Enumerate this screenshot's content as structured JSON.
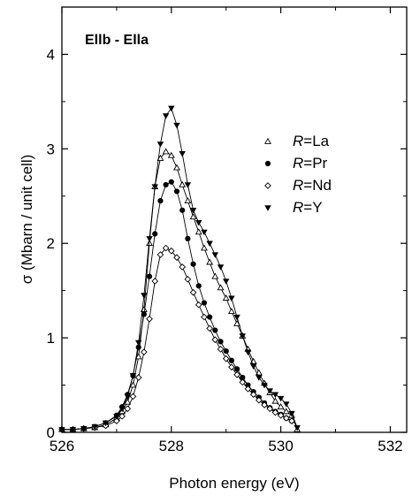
{
  "chart_data": {
    "type": "scatter",
    "title": "",
    "panel_label": "Ellb - Ella",
    "xlabel": "Photon energy (eV)",
    "ylabel": "σ (Mbarn / unit cell)",
    "xlim": [
      526,
      532.3
    ],
    "ylim": [
      0,
      4.5
    ],
    "x_ticks": [
      526,
      528,
      530,
      532
    ],
    "y_ticks": [
      0,
      1,
      2,
      3,
      4
    ],
    "grid": false,
    "legend_position": "upper-right",
    "series": [
      {
        "name": "R=La",
        "legend_prefix": "R",
        "legend_suffix": "=La",
        "marker": "triangle-up-open",
        "points": [
          [
            526.0,
            0.03
          ],
          [
            526.2,
            0.03
          ],
          [
            526.4,
            0.04
          ],
          [
            526.6,
            0.05
          ],
          [
            526.8,
            0.08
          ],
          [
            527.0,
            0.15
          ],
          [
            527.1,
            0.22
          ],
          [
            527.2,
            0.32
          ],
          [
            527.3,
            0.5
          ],
          [
            527.4,
            0.8
          ],
          [
            527.5,
            1.3
          ],
          [
            527.6,
            2.0
          ],
          [
            527.7,
            2.6
          ],
          [
            527.8,
            2.9
          ],
          [
            527.9,
            2.97
          ],
          [
            528.0,
            2.93
          ],
          [
            528.1,
            2.8
          ],
          [
            528.2,
            2.62
          ],
          [
            528.3,
            2.45
          ],
          [
            528.4,
            2.28
          ],
          [
            528.5,
            2.12
          ],
          [
            528.6,
            1.95
          ],
          [
            528.7,
            1.8
          ],
          [
            528.8,
            1.65
          ],
          [
            528.9,
            1.53
          ],
          [
            529.0,
            1.42
          ],
          [
            529.1,
            1.28
          ],
          [
            529.2,
            1.15
          ],
          [
            529.3,
            1.02
          ],
          [
            529.4,
            0.88
          ],
          [
            529.5,
            0.75
          ],
          [
            529.6,
            0.63
          ],
          [
            529.7,
            0.52
          ],
          [
            529.8,
            0.42
          ],
          [
            529.9,
            0.33
          ],
          [
            530.0,
            0.27
          ],
          [
            530.1,
            0.22
          ],
          [
            530.2,
            0.18
          ],
          [
            530.3,
            0.03
          ]
        ]
      },
      {
        "name": "R=Pr",
        "legend_prefix": "R",
        "legend_suffix": "=Pr",
        "marker": "circle-filled",
        "points": [
          [
            526.0,
            0.03
          ],
          [
            526.2,
            0.03
          ],
          [
            526.4,
            0.04
          ],
          [
            526.6,
            0.06
          ],
          [
            526.8,
            0.1
          ],
          [
            527.0,
            0.18
          ],
          [
            527.1,
            0.27
          ],
          [
            527.2,
            0.4
          ],
          [
            527.3,
            0.6
          ],
          [
            527.4,
            0.9
          ],
          [
            527.5,
            1.25
          ],
          [
            527.6,
            1.65
          ],
          [
            527.7,
            2.1
          ],
          [
            527.8,
            2.45
          ],
          [
            527.9,
            2.62
          ],
          [
            528.0,
            2.65
          ],
          [
            528.1,
            2.55
          ],
          [
            528.2,
            2.35
          ],
          [
            528.3,
            2.05
          ],
          [
            528.4,
            1.78
          ],
          [
            528.5,
            1.55
          ],
          [
            528.6,
            1.37
          ],
          [
            528.7,
            1.22
          ],
          [
            528.8,
            1.08
          ],
          [
            528.9,
            0.96
          ],
          [
            529.0,
            0.86
          ],
          [
            529.1,
            0.76
          ],
          [
            529.2,
            0.67
          ],
          [
            529.3,
            0.58
          ],
          [
            529.4,
            0.5
          ],
          [
            529.5,
            0.43
          ],
          [
            529.6,
            0.37
          ],
          [
            529.7,
            0.31
          ],
          [
            529.8,
            0.26
          ],
          [
            529.9,
            0.22
          ],
          [
            530.0,
            0.19
          ],
          [
            530.1,
            0.15
          ],
          [
            530.2,
            0.12
          ]
        ]
      },
      {
        "name": "R=Nd",
        "legend_prefix": "R",
        "legend_suffix": "=Nd",
        "marker": "diamond-open",
        "points": [
          [
            526.0,
            0.03
          ],
          [
            526.2,
            0.03
          ],
          [
            526.4,
            0.04
          ],
          [
            526.6,
            0.05
          ],
          [
            526.8,
            0.07
          ],
          [
            527.0,
            0.12
          ],
          [
            527.1,
            0.17
          ],
          [
            527.2,
            0.25
          ],
          [
            527.3,
            0.38
          ],
          [
            527.4,
            0.58
          ],
          [
            527.5,
            0.85
          ],
          [
            527.6,
            1.2
          ],
          [
            527.7,
            1.6
          ],
          [
            527.8,
            1.88
          ],
          [
            527.9,
            1.95
          ],
          [
            528.0,
            1.92
          ],
          [
            528.1,
            1.85
          ],
          [
            528.2,
            1.75
          ],
          [
            528.3,
            1.62
          ],
          [
            528.4,
            1.48
          ],
          [
            528.5,
            1.35
          ],
          [
            528.6,
            1.22
          ],
          [
            528.7,
            1.1
          ],
          [
            528.8,
            0.98
          ],
          [
            528.9,
            0.88
          ],
          [
            529.0,
            0.78
          ],
          [
            529.1,
            0.69
          ],
          [
            529.2,
            0.61
          ],
          [
            529.3,
            0.53
          ],
          [
            529.4,
            0.46
          ],
          [
            529.5,
            0.4
          ],
          [
            529.6,
            0.34
          ],
          [
            529.7,
            0.29
          ],
          [
            529.8,
            0.25
          ],
          [
            529.9,
            0.21
          ],
          [
            530.0,
            0.18
          ],
          [
            530.1,
            0.15
          ],
          [
            530.2,
            0.12
          ]
        ]
      },
      {
        "name": "R=Y",
        "legend_prefix": "R",
        "legend_suffix": "=Y",
        "marker": "triangle-down-filled",
        "points": [
          [
            526.0,
            0.03
          ],
          [
            526.2,
            0.03
          ],
          [
            526.4,
            0.04
          ],
          [
            526.6,
            0.06
          ],
          [
            526.8,
            0.1
          ],
          [
            527.0,
            0.17
          ],
          [
            527.1,
            0.25
          ],
          [
            527.2,
            0.38
          ],
          [
            527.3,
            0.6
          ],
          [
            527.4,
            0.95
          ],
          [
            527.5,
            1.45
          ],
          [
            527.6,
            2.05
          ],
          [
            527.7,
            2.6
          ],
          [
            527.8,
            3.05
          ],
          [
            527.9,
            3.35
          ],
          [
            528.0,
            3.43
          ],
          [
            528.1,
            3.25
          ],
          [
            528.2,
            2.95
          ],
          [
            528.3,
            2.62
          ],
          [
            528.4,
            2.35
          ],
          [
            528.5,
            2.22
          ],
          [
            528.6,
            2.12
          ],
          [
            528.7,
            2.0
          ],
          [
            528.8,
            1.88
          ],
          [
            528.9,
            1.75
          ],
          [
            529.0,
            1.6
          ],
          [
            529.1,
            1.42
          ],
          [
            529.2,
            1.22
          ],
          [
            529.3,
            1.02
          ],
          [
            529.4,
            0.85
          ],
          [
            529.5,
            0.7
          ],
          [
            529.6,
            0.58
          ],
          [
            529.7,
            0.5
          ],
          [
            529.8,
            0.44
          ],
          [
            529.9,
            0.4
          ],
          [
            530.0,
            0.36
          ],
          [
            530.1,
            0.3
          ],
          [
            530.2,
            0.2
          ],
          [
            530.3,
            0.05
          ]
        ]
      }
    ]
  }
}
